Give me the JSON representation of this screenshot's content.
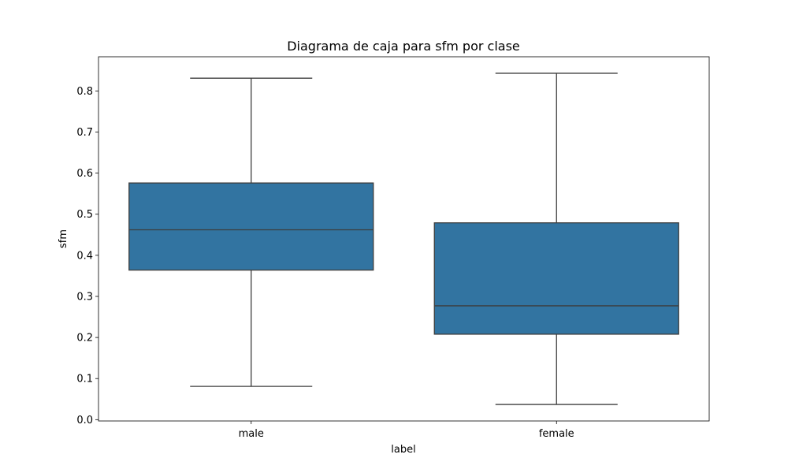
{
  "chart_data": {
    "type": "box",
    "title": "Diagrama de caja para sfm por clase",
    "xlabel": "label",
    "ylabel": "sfm",
    "categories": [
      "male",
      "female"
    ],
    "boxes": [
      {
        "category": "male",
        "whisker_low": 0.081,
        "q1": 0.364,
        "median": 0.462,
        "q3": 0.576,
        "whisker_high": 0.831
      },
      {
        "category": "female",
        "whisker_low": 0.037,
        "q1": 0.208,
        "median": 0.277,
        "q3": 0.479,
        "whisker_high": 0.843
      }
    ],
    "y_ticks": [
      "0.0",
      "0.1",
      "0.2",
      "0.3",
      "0.4",
      "0.5",
      "0.6",
      "0.7",
      "0.8"
    ],
    "y_tick_values": [
      0.0,
      0.1,
      0.2,
      0.3,
      0.4,
      0.5,
      0.6,
      0.7,
      0.8
    ],
    "ylim": [
      -0.0032,
      0.8832
    ],
    "grid": false,
    "box_color": "#3274a1",
    "line_color": "#3d3d3d"
  }
}
